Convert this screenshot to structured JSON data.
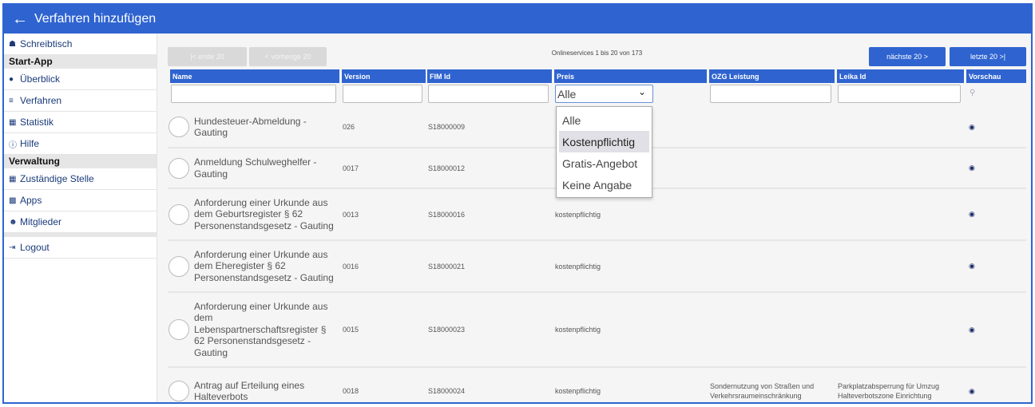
{
  "header": {
    "title": "Verfahren hinzufügen",
    "back_icon": "arrow-left-icon"
  },
  "sidebar": {
    "items": [
      {
        "type": "item",
        "label": "Schreibtisch",
        "icon": "home-icon"
      },
      {
        "type": "section",
        "label": "Start-App"
      },
      {
        "type": "item",
        "label": "Überblick",
        "icon": "lightbulb-icon"
      },
      {
        "type": "item",
        "label": "Verfahren",
        "icon": "list-icon"
      },
      {
        "type": "item",
        "label": "Statistik",
        "icon": "store-icon"
      },
      {
        "type": "item",
        "label": "Hilfe",
        "icon": "help-icon"
      },
      {
        "type": "section",
        "label": "Verwaltung"
      },
      {
        "type": "item",
        "label": "Zuständige Stelle",
        "icon": "store-icon"
      },
      {
        "type": "item",
        "label": "Apps",
        "icon": "library-icon"
      },
      {
        "type": "item",
        "label": "Mitglieder",
        "icon": "people-icon"
      },
      {
        "type": "item",
        "label": "Logout",
        "icon": "logout-icon"
      }
    ]
  },
  "pagination": {
    "first": "|< erste 20",
    "prev": "< vorherige 20",
    "info": "Onlineservices 1 bis 20 von 173",
    "next": "nächste 20 >",
    "last": "letzte 20 >|"
  },
  "table": {
    "columns": [
      "Name",
      "Version",
      "FIM Id",
      "Preis",
      "OZG Leistung",
      "Leika Id",
      "Vorschau"
    ],
    "filters": {
      "name": "",
      "version": "",
      "fim": "",
      "preis": "Alle",
      "ozg": "",
      "leika": ""
    },
    "preis_options": [
      "Alle",
      "Kostenpflichtig",
      "Gratis-Angebot",
      "Keine Angabe"
    ],
    "preis_highlighted": "Kostenpflichtig",
    "rows": [
      {
        "name": "Hundesteuer-Abmeldung - Gauting",
        "version": "026",
        "fim": "S18000009",
        "preis": "",
        "ozg": "",
        "leika": ""
      },
      {
        "name": "Anmeldung Schulweghelfer - Gauting",
        "version": "0017",
        "fim": "S18000012",
        "preis": "",
        "ozg": "",
        "leika": ""
      },
      {
        "name": "Anforderung einer Urkunde aus dem Geburtsregister § 62 Personenstandsgesetz - Gauting",
        "version": "0013",
        "fim": "S18000016",
        "preis": "kostenpflichtig",
        "ozg": "",
        "leika": ""
      },
      {
        "name": "Anforderung einer Urkunde aus dem Eheregister § 62 Personenstandsgesetz - Gauting",
        "version": "0016",
        "fim": "S18000021",
        "preis": "kostenpflichtig",
        "ozg": "",
        "leika": ""
      },
      {
        "name": "Anforderung einer Urkunde aus dem Lebenspartnerschaftsregister § 62 Personenstandsgesetz - Gauting",
        "version": "0015",
        "fim": "S18000023",
        "preis": "kostenpflichtig",
        "ozg": "",
        "leika": ""
      },
      {
        "name": "Antrag auf Erteilung eines Halteverbots",
        "version": "0018",
        "fim": "S18000024",
        "preis": "kostenpflichtig",
        "ozg": "Sondernutzung von Straßen und Verkehrsraumeinschränkung",
        "leika": "Parkplatzabsperrung für Umzug Halteverbotszone Einrichtung"
      }
    ]
  },
  "colors": {
    "primary": "#2f64d0",
    "background": "#f5f5f5"
  }
}
